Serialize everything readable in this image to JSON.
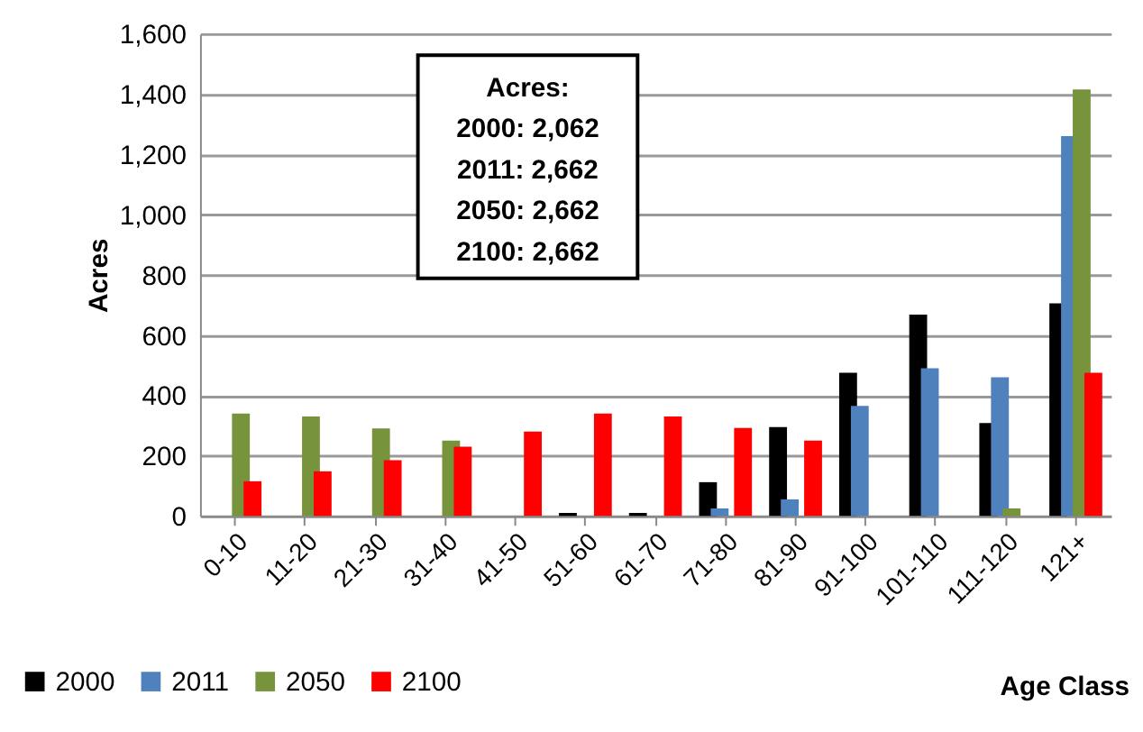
{
  "chart_data": {
    "type": "bar",
    "xlabel": "Age Class",
    "ylabel": "Acres",
    "categories": [
      "0-10",
      "11-20",
      "21-30",
      "31-40",
      "41-50",
      "51-60",
      "61-70",
      "71-80",
      "81-90",
      "91-100",
      "101-110",
      "111-120",
      "121+"
    ],
    "series": [
      {
        "name": "2000",
        "color": "#000000",
        "values": [
          0,
          0,
          0,
          0,
          0,
          10,
          10,
          112,
          295,
          475,
          668,
          308,
          705
        ]
      },
      {
        "name": "2011",
        "color": "#4f81bd",
        "values": [
          0,
          0,
          0,
          0,
          0,
          0,
          0,
          25,
          55,
          365,
          490,
          460,
          1260
        ]
      },
      {
        "name": "2050",
        "color": "#77933c",
        "values": [
          340,
          330,
          290,
          250,
          0,
          0,
          0,
          0,
          0,
          0,
          0,
          25,
          1415
        ]
      },
      {
        "name": "2100",
        "color": "#ff0000",
        "values": [
          115,
          148,
          185,
          230,
          280,
          340,
          330,
          292,
          250,
          0,
          0,
          0,
          475
        ]
      }
    ],
    "ylim": [
      0,
      1600
    ],
    "yticks": [
      {
        "value": 0,
        "label": "0"
      },
      {
        "value": 200,
        "label": "200"
      },
      {
        "value": 400,
        "label": "400"
      },
      {
        "value": 600,
        "label": "600"
      },
      {
        "value": 800,
        "label": "800"
      },
      {
        "value": 1000,
        "label": "1,000"
      },
      {
        "value": 1200,
        "label": "1,200"
      },
      {
        "value": 1400,
        "label": "1,400"
      },
      {
        "value": 1600,
        "label": "1,600"
      }
    ],
    "grid": "y",
    "legend": "bottom left",
    "annotations": [
      "Acres:",
      "2000:  2,062",
      "2011:  2,662",
      "2050:  2,662",
      "2100: 2,662"
    ]
  }
}
